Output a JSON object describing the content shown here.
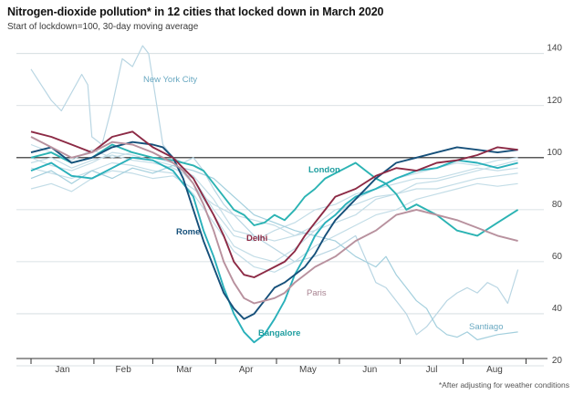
{
  "chart_data": {
    "type": "line",
    "title": "Nitrogen-dioxide pollution* in 12 cities that locked down in March 2020",
    "subtitle": "Start of lockdown=100, 30-day moving average",
    "footnote": "*After adjusting for weather conditions",
    "x_months": [
      "Jan",
      "Feb",
      "Mar",
      "Apr",
      "May",
      "Jun",
      "Jul",
      "Aug"
    ],
    "y_ticks": [
      140,
      120,
      100,
      80,
      60,
      40,
      20
    ],
    "ylim": [
      20,
      142
    ],
    "reference_line": 100,
    "x_range_days": [
      0,
      242
    ],
    "series": [
      {
        "name": "New York City",
        "color": "#b9d6e3",
        "labeled": true,
        "x": [
          0,
          5,
          10,
          15,
          20,
          25,
          28,
          30,
          35,
          40,
          45,
          50,
          55,
          58,
          60,
          65,
          70,
          75,
          80,
          85,
          90,
          95,
          100,
          110,
          120,
          130,
          140,
          150,
          160,
          170,
          175,
          180,
          185,
          190,
          195,
          200,
          205,
          210,
          215,
          220,
          225,
          230,
          235,
          240
        ],
        "y": [
          134,
          128,
          122,
          118,
          125,
          132,
          128,
          108,
          105,
          120,
          138,
          135,
          143,
          140,
          130,
          105,
          100,
          98,
          100,
          95,
          88,
          82,
          78,
          70,
          65,
          60,
          62,
          65,
          70,
          52,
          50,
          45,
          40,
          32,
          35,
          40,
          45,
          48,
          50,
          48,
          52,
          50,
          44,
          57
        ]
      },
      {
        "name": "Santiago",
        "color": "#a3cfdd",
        "labeled": true,
        "x": [
          0,
          10,
          20,
          30,
          40,
          50,
          60,
          70,
          80,
          90,
          100,
          110,
          120,
          130,
          140,
          150,
          160,
          165,
          170,
          175,
          180,
          185,
          190,
          195,
          200,
          205,
          210,
          215,
          220,
          230,
          240
        ],
        "y": [
          92,
          95,
          90,
          95,
          92,
          96,
          94,
          97,
          95,
          92,
          85,
          78,
          75,
          72,
          70,
          68,
          62,
          60,
          58,
          62,
          55,
          50,
          45,
          42,
          35,
          32,
          31,
          33,
          30,
          32,
          33
        ]
      },
      {
        "name": "London",
        "color": "#2bb3b3",
        "labeled": true,
        "x": [
          0,
          10,
          20,
          30,
          40,
          50,
          60,
          70,
          80,
          85,
          90,
          95,
          100,
          105,
          110,
          115,
          120,
          125,
          130,
          135,
          140,
          145,
          150,
          155,
          160,
          165,
          170,
          175,
          180,
          185,
          190,
          200,
          210,
          220,
          230,
          240
        ],
        "y": [
          100,
          102,
          98,
          100,
          105,
          102,
          100,
          99,
          97,
          95,
          90,
          85,
          80,
          78,
          74,
          75,
          78,
          76,
          80,
          85,
          88,
          92,
          94,
          96,
          98,
          95,
          92,
          90,
          86,
          80,
          82,
          78,
          72,
          70,
          75,
          80
        ]
      },
      {
        "name": "Bangalore",
        "color": "#29b0ba",
        "labeled": true,
        "x": [
          0,
          10,
          20,
          30,
          40,
          50,
          60,
          70,
          75,
          80,
          85,
          90,
          95,
          100,
          105,
          110,
          115,
          120,
          125,
          130,
          135,
          140,
          145,
          150,
          155,
          160,
          170,
          180,
          190,
          200,
          210,
          220,
          230,
          240
        ],
        "y": [
          95,
          98,
          93,
          92,
          96,
          100,
          99,
          95,
          90,
          85,
          72,
          62,
          50,
          40,
          33,
          29,
          32,
          38,
          45,
          55,
          62,
          70,
          75,
          78,
          82,
          85,
          88,
          92,
          95,
          96,
          99,
          98,
          96,
          98
        ]
      },
      {
        "name": "Rome",
        "color": "#16507a",
        "labeled": true,
        "x": [
          0,
          10,
          20,
          30,
          40,
          50,
          60,
          65,
          70,
          75,
          80,
          85,
          90,
          95,
          100,
          105,
          110,
          115,
          120,
          125,
          130,
          135,
          140,
          145,
          150,
          160,
          170,
          180,
          190,
          200,
          210,
          220,
          230,
          240
        ],
        "y": [
          102,
          104,
          98,
          100,
          104,
          106,
          105,
          104,
          100,
          92,
          80,
          68,
          58,
          48,
          42,
          38,
          40,
          45,
          50,
          52,
          55,
          58,
          63,
          70,
          76,
          84,
          92,
          98,
          100,
          102,
          104,
          103,
          102,
          103
        ]
      },
      {
        "name": "Delhi",
        "color": "#8c2a45",
        "labeled": true,
        "x": [
          0,
          10,
          20,
          30,
          40,
          50,
          60,
          70,
          75,
          80,
          85,
          90,
          95,
          100,
          105,
          110,
          115,
          120,
          125,
          130,
          135,
          140,
          145,
          150,
          160,
          170,
          180,
          190,
          200,
          210,
          220,
          230,
          240
        ],
        "y": [
          110,
          108,
          105,
          102,
          108,
          110,
          104,
          100,
          96,
          92,
          85,
          78,
          70,
          60,
          55,
          54,
          56,
          58,
          60,
          64,
          70,
          75,
          80,
          85,
          88,
          93,
          96,
          95,
          98,
          99,
          101,
          104,
          103
        ]
      },
      {
        "name": "Paris",
        "color": "#b8919e",
        "labeled": true,
        "x": [
          0,
          10,
          20,
          30,
          40,
          50,
          60,
          70,
          75,
          80,
          85,
          90,
          95,
          100,
          105,
          110,
          115,
          120,
          125,
          130,
          135,
          140,
          150,
          160,
          170,
          180,
          190,
          200,
          210,
          220,
          230,
          240
        ],
        "y": [
          108,
          104,
          100,
          102,
          106,
          105,
          102,
          98,
          95,
          90,
          82,
          72,
          60,
          52,
          46,
          44,
          45,
          46,
          48,
          52,
          55,
          58,
          62,
          68,
          72,
          78,
          80,
          78,
          76,
          73,
          70,
          68
        ]
      },
      {
        "name": "",
        "color": "#c3dde7",
        "labeled": false,
        "x": [
          0,
          10,
          20,
          30,
          40,
          50,
          60,
          70,
          80,
          90,
          100,
          110,
          120,
          130,
          140,
          150,
          160,
          170,
          180,
          190,
          200,
          210,
          220,
          230,
          240
        ],
        "y": [
          98,
          100,
          96,
          99,
          101,
          99,
          98,
          96,
          92,
          80,
          70,
          68,
          72,
          75,
          80,
          82,
          86,
          88,
          92,
          94,
          96,
          98,
          97,
          99,
          100
        ]
      },
      {
        "name": "",
        "color": "#c3dde7",
        "labeled": false,
        "x": [
          0,
          10,
          20,
          30,
          40,
          50,
          60,
          70,
          80,
          90,
          100,
          110,
          120,
          130,
          140,
          150,
          160,
          170,
          180,
          190,
          200,
          210,
          220,
          230,
          240
        ],
        "y": [
          105,
          102,
          99,
          103,
          100,
          102,
          100,
          98,
          90,
          78,
          66,
          62,
          60,
          65,
          72,
          78,
          84,
          88,
          90,
          92,
          92,
          94,
          96,
          95,
          96
        ]
      },
      {
        "name": "",
        "color": "#c3dde7",
        "labeled": false,
        "x": [
          0,
          10,
          20,
          30,
          40,
          50,
          60,
          70,
          80,
          90,
          100,
          110,
          120,
          130,
          140,
          150,
          160,
          170,
          180,
          190,
          200,
          210,
          220,
          230,
          240
        ],
        "y": [
          96,
          94,
          92,
          95,
          98,
          97,
          95,
          94,
          86,
          75,
          64,
          58,
          56,
          60,
          66,
          70,
          74,
          78,
          80,
          84,
          86,
          88,
          90,
          89,
          90
        ]
      },
      {
        "name": "",
        "color": "#c3dde7",
        "labeled": false,
        "x": [
          0,
          10,
          20,
          30,
          40,
          50,
          60,
          70,
          80,
          90,
          100,
          110,
          120,
          130,
          140,
          150,
          160,
          170,
          180,
          190,
          200,
          210,
          220,
          230,
          240
        ],
        "y": [
          88,
          90,
          87,
          92,
          95,
          94,
          92,
          93,
          88,
          82,
          78,
          76,
          74,
          70,
          72,
          75,
          78,
          84,
          86,
          88,
          88,
          90,
          92,
          93,
          94
        ]
      },
      {
        "name": "",
        "color": "#c3dde7",
        "labeled": false,
        "x": [
          0,
          10,
          20,
          30,
          40,
          50,
          60,
          70,
          80,
          90,
          100,
          110,
          120,
          130,
          140,
          150,
          160,
          170,
          180,
          190,
          200,
          210,
          220,
          230,
          240
        ],
        "y": [
          100,
          97,
          95,
          98,
          102,
          101,
          99,
          97,
          93,
          84,
          72,
          70,
          68,
          70,
          74,
          80,
          82,
          85,
          86,
          90,
          91,
          93,
          95,
          97,
          99
        ]
      }
    ],
    "label_colors": {
      "New York City": "#6aa9c2",
      "Santiago": "#6aa9c2",
      "London": "#1f9ea0",
      "Bangalore": "#1f9ea0",
      "Rome": "#16507a",
      "Delhi": "#8c2a45",
      "Paris": "#a88391"
    }
  }
}
